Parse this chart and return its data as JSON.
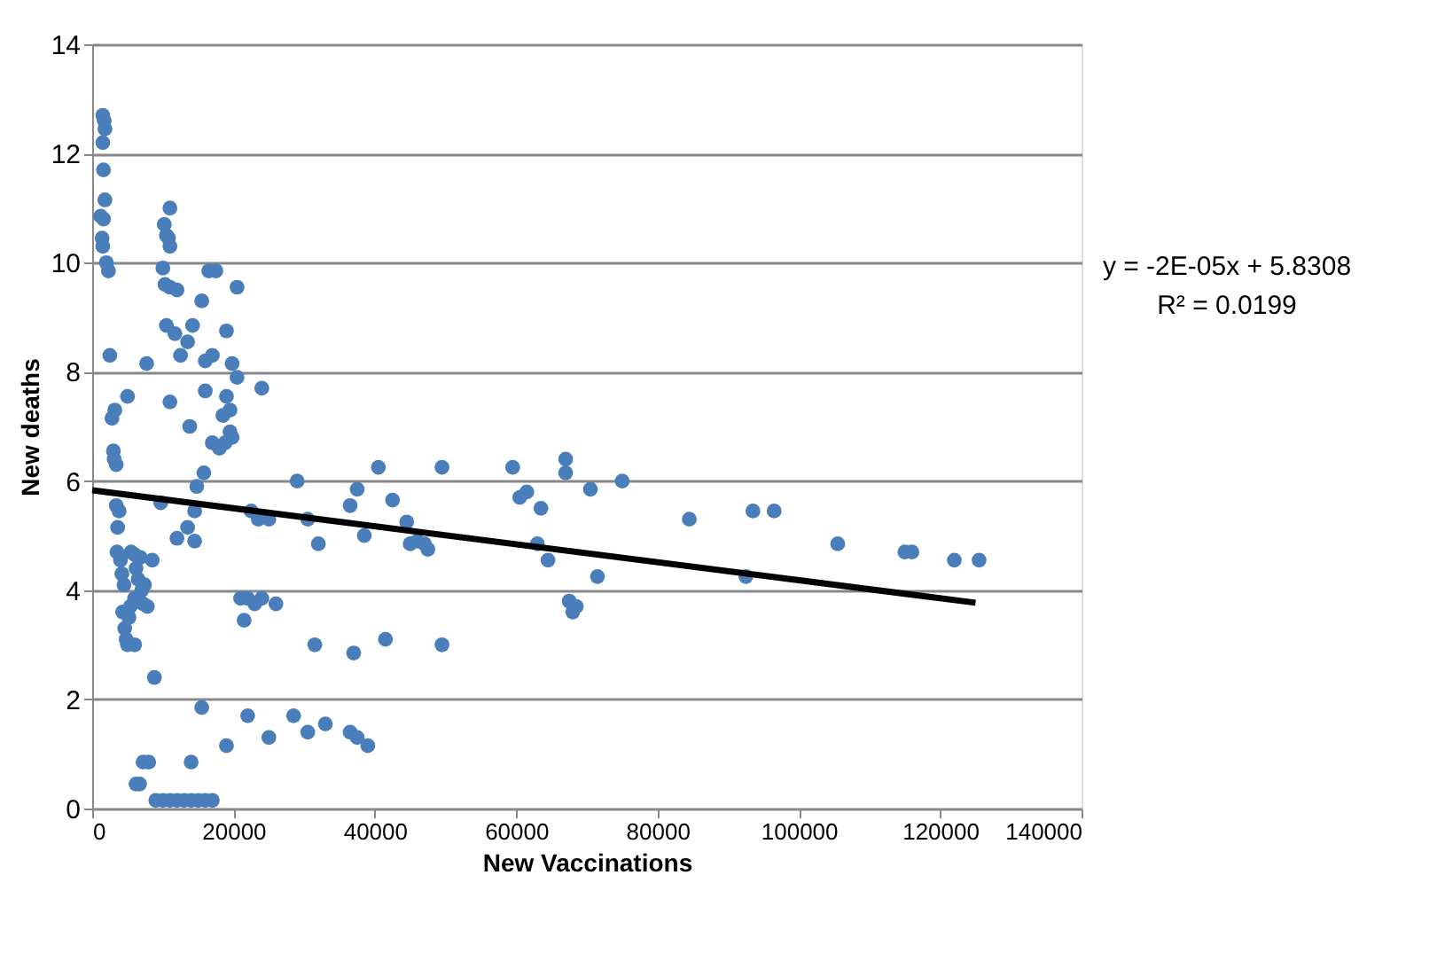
{
  "chart_data": {
    "type": "scatter",
    "xlabel": "New Vaccinations",
    "ylabel": "New deaths",
    "xlim": [
      0,
      140000
    ],
    "xticks": [
      0,
      20000,
      40000,
      60000,
      80000,
      100000,
      120000,
      140000
    ],
    "ylim": [
      0,
      14
    ],
    "yticks": [
      0,
      2,
      4,
      6,
      8,
      10,
      12,
      14
    ],
    "grid": "y",
    "annotations": [
      "y = -2E-05x + 5.8308",
      "R² = 0.0199"
    ],
    "series": [
      {
        "color": "#4a7ebb",
        "marker": "circle",
        "x": [
          1500,
          1700,
          1800,
          1500,
          1600,
          1800,
          1200,
          1600,
          1400,
          1500,
          2000,
          2300,
          2500,
          2800,
          3200,
          3000,
          3100,
          3400,
          3400,
          3800,
          3600,
          3500,
          4000,
          4200,
          4500,
          4300,
          4600,
          4800,
          5000,
          5400,
          5200,
          5500,
          6000,
          6200,
          6500,
          7000,
          7200,
          7800,
          8500,
          6000,
          6800,
          7400,
          5000,
          7700,
          6000,
          8800,
          6200,
          6700,
          7200,
          8000,
          10200,
          10500,
          11000,
          11000,
          10800,
          10000,
          10300,
          11000,
          12000,
          10500,
          11700,
          12500,
          13500,
          14200,
          13800,
          11000,
          9700,
          16500,
          17500,
          15500,
          20500,
          19000,
          16000,
          17000,
          19800,
          20500,
          24000,
          16000,
          19000,
          19500,
          18500,
          15800,
          17000,
          18800,
          19500,
          19800,
          18000,
          14800,
          14500,
          13500,
          14500,
          12000,
          9000,
          10000,
          11000,
          12000,
          13000,
          14000,
          15000,
          16000,
          17000,
          14000,
          15500,
          19000,
          22000,
          25000,
          28500,
          30500,
          33000,
          36500,
          37500,
          39000,
          21000,
          22000,
          23000,
          24000,
          26000,
          21500,
          22500,
          23500,
          25000,
          29000,
          30500,
          32000,
          31500,
          36500,
          37500,
          38500,
          37000,
          41500,
          40500,
          42500,
          44500,
          45000,
          46000,
          47500,
          47000,
          49500,
          49500,
          59500,
          60500,
          61500,
          63500,
          64500,
          63000,
          67000,
          67000,
          67500,
          68000,
          68500,
          70500,
          71500,
          75000,
          84500,
          92500,
          93500,
          96500,
          105500,
          115000,
          116000,
          122000,
          125500
        ],
        "values": [
          12.7,
          12.6,
          12.45,
          12.2,
          11.7,
          11.15,
          10.85,
          10.8,
          10.45,
          10.3,
          10.0,
          9.85,
          8.3,
          7.15,
          7.3,
          6.55,
          6.4,
          6.3,
          5.55,
          5.45,
          5.15,
          4.7,
          4.55,
          4.3,
          4.1,
          3.6,
          3.3,
          3.1,
          3.0,
          3.7,
          3.5,
          4.7,
          4.65,
          4.4,
          4.2,
          4.0,
          3.75,
          3.7,
          4.55,
          3.85,
          4.6,
          4.1,
          7.55,
          8.15,
          3.0,
          2.4,
          0.45,
          0.45,
          0.85,
          0.85,
          10.7,
          10.5,
          10.3,
          11.0,
          10.45,
          9.9,
          9.6,
          9.55,
          9.5,
          8.85,
          8.7,
          8.3,
          8.55,
          8.85,
          7.0,
          7.45,
          5.6,
          9.85,
          9.85,
          9.3,
          9.55,
          8.75,
          8.2,
          8.3,
          8.15,
          7.9,
          7.7,
          7.65,
          7.55,
          7.3,
          7.2,
          6.15,
          6.7,
          6.7,
          6.9,
          6.8,
          6.6,
          5.9,
          5.45,
          5.15,
          4.9,
          4.95,
          0.15,
          0.15,
          0.15,
          0.15,
          0.15,
          0.15,
          0.15,
          0.15,
          0.15,
          0.85,
          1.85,
          1.15,
          1.7,
          1.3,
          1.7,
          1.4,
          1.55,
          1.4,
          1.3,
          1.15,
          3.85,
          3.85,
          3.75,
          3.85,
          3.75,
          3.45,
          5.45,
          5.3,
          5.3,
          6.0,
          5.3,
          4.85,
          3.0,
          5.55,
          5.85,
          5.0,
          2.85,
          3.1,
          6.25,
          5.65,
          5.25,
          4.85,
          4.9,
          4.75,
          4.85,
          6.25,
          3.0,
          6.25,
          5.7,
          5.8,
          5.5,
          4.55,
          4.85,
          6.4,
          6.15,
          3.8,
          3.6,
          3.7,
          5.85,
          4.25,
          6.0,
          5.3,
          4.25,
          5.45,
          5.45,
          4.85,
          4.7,
          4.7,
          4.55,
          4.55
        ]
      },
      {
        "type": "line",
        "color": "#000000",
        "marker": "none",
        "x": [
          0,
          125000
        ],
        "values": [
          5.83,
          3.77
        ]
      }
    ]
  }
}
